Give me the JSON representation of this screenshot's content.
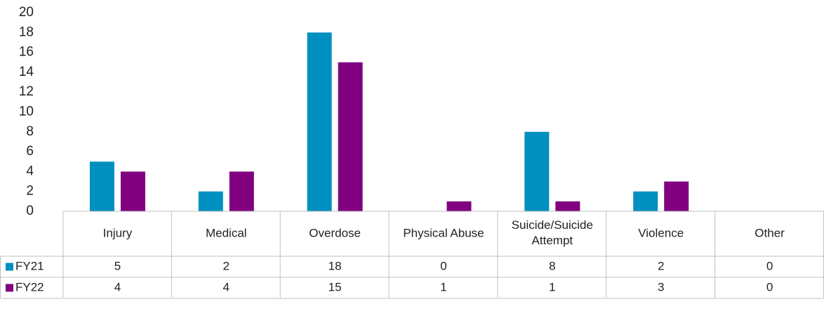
{
  "chart_data": {
    "type": "bar",
    "categories": [
      "Injury",
      "Medical",
      "Overdose",
      "Physical Abuse",
      "Suicide/Suicide Attempt",
      "Violence",
      "Other"
    ],
    "series": [
      {
        "name": "FY21",
        "color": "#0090c0",
        "values": [
          5,
          2,
          18,
          0,
          8,
          2,
          0
        ]
      },
      {
        "name": "FY22",
        "color": "#800080",
        "values": [
          4,
          4,
          15,
          1,
          1,
          3,
          0
        ]
      }
    ],
    "ylim": [
      0,
      20
    ],
    "yticks": [
      0,
      2,
      4,
      6,
      8,
      10,
      12,
      14,
      16,
      18,
      20
    ],
    "grid": false,
    "data_table": true
  }
}
